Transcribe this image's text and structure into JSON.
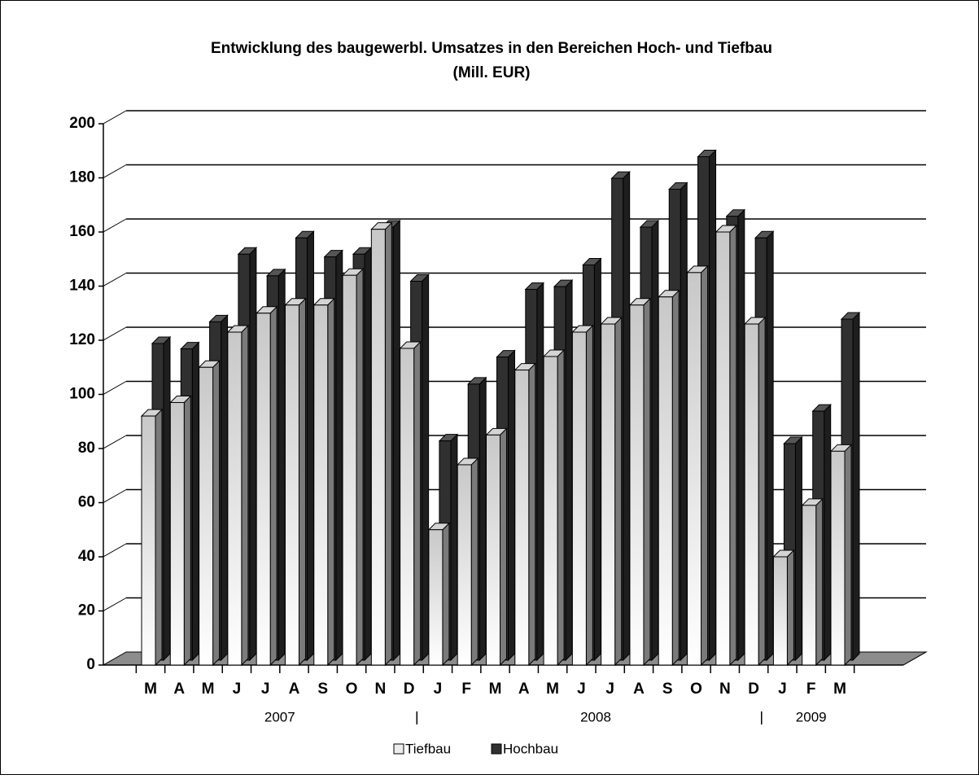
{
  "chart_data": {
    "type": "bar3d",
    "title": "Entwicklung des baugewerbl. Umsatzes  in den Bereichen Hoch- und Tiefbau",
    "subtitle": "(Mill. EUR)",
    "categories": [
      "M",
      "A",
      "M",
      "J",
      "J",
      "A",
      "S",
      "O",
      "N",
      "D",
      "J",
      "F",
      "M",
      "A",
      "M",
      "J",
      "J",
      "A",
      "S",
      "O",
      "N",
      "D",
      "J",
      "F",
      "M"
    ],
    "groups": [
      {
        "label": "2007",
        "start": 0,
        "end": 9
      },
      {
        "label": "2008",
        "start": 10,
        "end": 21
      },
      {
        "label": "2009",
        "start": 22,
        "end": 24
      }
    ],
    "series": [
      {
        "name": "Tiefbau",
        "color": "#d4d4d4",
        "values": [
          92,
          97,
          110,
          123,
          130,
          133,
          133,
          144,
          161,
          117,
          50,
          74,
          85,
          109,
          114,
          123,
          126,
          133,
          136,
          145,
          160,
          126,
          40,
          59,
          79
        ]
      },
      {
        "name": "Hochbau",
        "color": "#303030",
        "values": [
          117,
          115,
          125,
          150,
          142,
          156,
          149,
          150,
          160,
          140,
          81,
          102,
          112,
          137,
          138,
          146,
          178,
          160,
          174,
          186,
          164,
          156,
          80,
          92,
          126
        ]
      }
    ],
    "ylim": [
      0,
      200
    ],
    "yticks": [
      0,
      20,
      40,
      60,
      80,
      100,
      120,
      140,
      160,
      180,
      200
    ],
    "grid": true,
    "legend": "bottom"
  }
}
